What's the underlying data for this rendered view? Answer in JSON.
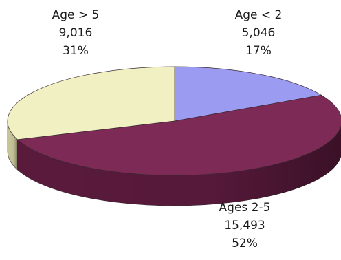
{
  "chart_data": {
    "type": "pie",
    "categories": [
      "Age < 2",
      "Ages 2-5",
      "Age > 5"
    ],
    "values": [
      5046,
      15493,
      9016
    ],
    "percents": [
      "17%",
      "52%",
      "31%"
    ],
    "value_labels": [
      "5,046",
      "15,493",
      "9,016"
    ],
    "colors": [
      "#9b9bf1",
      "#7d2a56",
      "#f1f0c2"
    ],
    "side_colors": [
      "#6f6fbf",
      "#5a1a3c",
      "#c9c79a"
    ],
    "style": "3d"
  },
  "labels": [
    {
      "name": "Age < 2",
      "value": "5,046",
      "percent": "17%"
    },
    {
      "name": "Ages 2-5",
      "value": "15,493",
      "percent": "52%"
    },
    {
      "name": "Age > 5",
      "value": "9,016",
      "percent": "31%"
    }
  ]
}
